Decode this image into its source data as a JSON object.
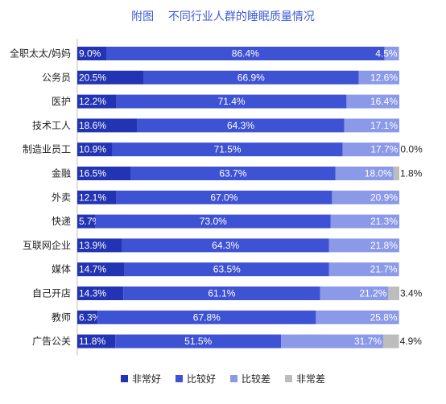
{
  "chart_data": {
    "type": "bar",
    "stacked": true,
    "orientation": "horizontal",
    "title": "附图    不同行业人群的睡眠质量情况",
    "categories": [
      "全职太太/妈妈",
      "公务员",
      "医护",
      "技术工人",
      "制造业员工",
      "金融",
      "外卖",
      "快递",
      "互联网企业",
      "媒体",
      "自己开店",
      "教师",
      "广告公关"
    ],
    "series": [
      {
        "name": "非常好",
        "color": "#2234b4",
        "values": [
          9.0,
          20.5,
          12.2,
          18.6,
          10.9,
          16.5,
          12.1,
          5.7,
          13.9,
          14.7,
          14.3,
          6.3,
          11.8
        ]
      },
      {
        "name": "比较好",
        "color": "#3e52d4",
        "values": [
          86.4,
          66.9,
          71.4,
          64.3,
          71.5,
          63.7,
          67.0,
          73.0,
          64.3,
          63.5,
          61.1,
          67.8,
          51.5
        ]
      },
      {
        "name": "比较差",
        "color": "#8a99e8",
        "values": [
          4.5,
          12.6,
          16.4,
          17.1,
          17.7,
          18.0,
          20.9,
          21.3,
          21.8,
          21.7,
          21.2,
          25.8,
          31.7
        ]
      },
      {
        "name": "非常差",
        "color": "#bdbdbd",
        "values": [
          0,
          0,
          0,
          0,
          0.0,
          1.8,
          0,
          0,
          0,
          0,
          3.4,
          0,
          4.9
        ]
      }
    ],
    "value_labels": [
      [
        "9.0%",
        "86.4%",
        "4.5%",
        ""
      ],
      [
        "20.5%",
        "66.9%",
        "12.6%",
        ""
      ],
      [
        "12.2%",
        "71.4%",
        "16.4%",
        ""
      ],
      [
        "18.6%",
        "64.3%",
        "17.1%",
        ""
      ],
      [
        "10.9%",
        "71.5%",
        "17.7%",
        "0.0%"
      ],
      [
        "16.5%",
        "63.7%",
        "18.0%",
        "1.8%"
      ],
      [
        "12.1%",
        "67.0%",
        "20.9%",
        ""
      ],
      [
        "5.7%",
        "73.0%",
        "21.3%",
        ""
      ],
      [
        "13.9%",
        "64.3%",
        "21.8%",
        ""
      ],
      [
        "14.7%",
        "63.5%",
        "21.7%",
        ""
      ],
      [
        "14.3%",
        "61.1%",
        "21.2%",
        "3.4%"
      ],
      [
        "6.3%",
        "67.8%",
        "25.8%",
        ""
      ],
      [
        "11.8%",
        "51.5%",
        "31.7%",
        "4.9%"
      ]
    ],
    "xlim": [
      0,
      100
    ],
    "grid": false,
    "legend_position": "bottom"
  }
}
